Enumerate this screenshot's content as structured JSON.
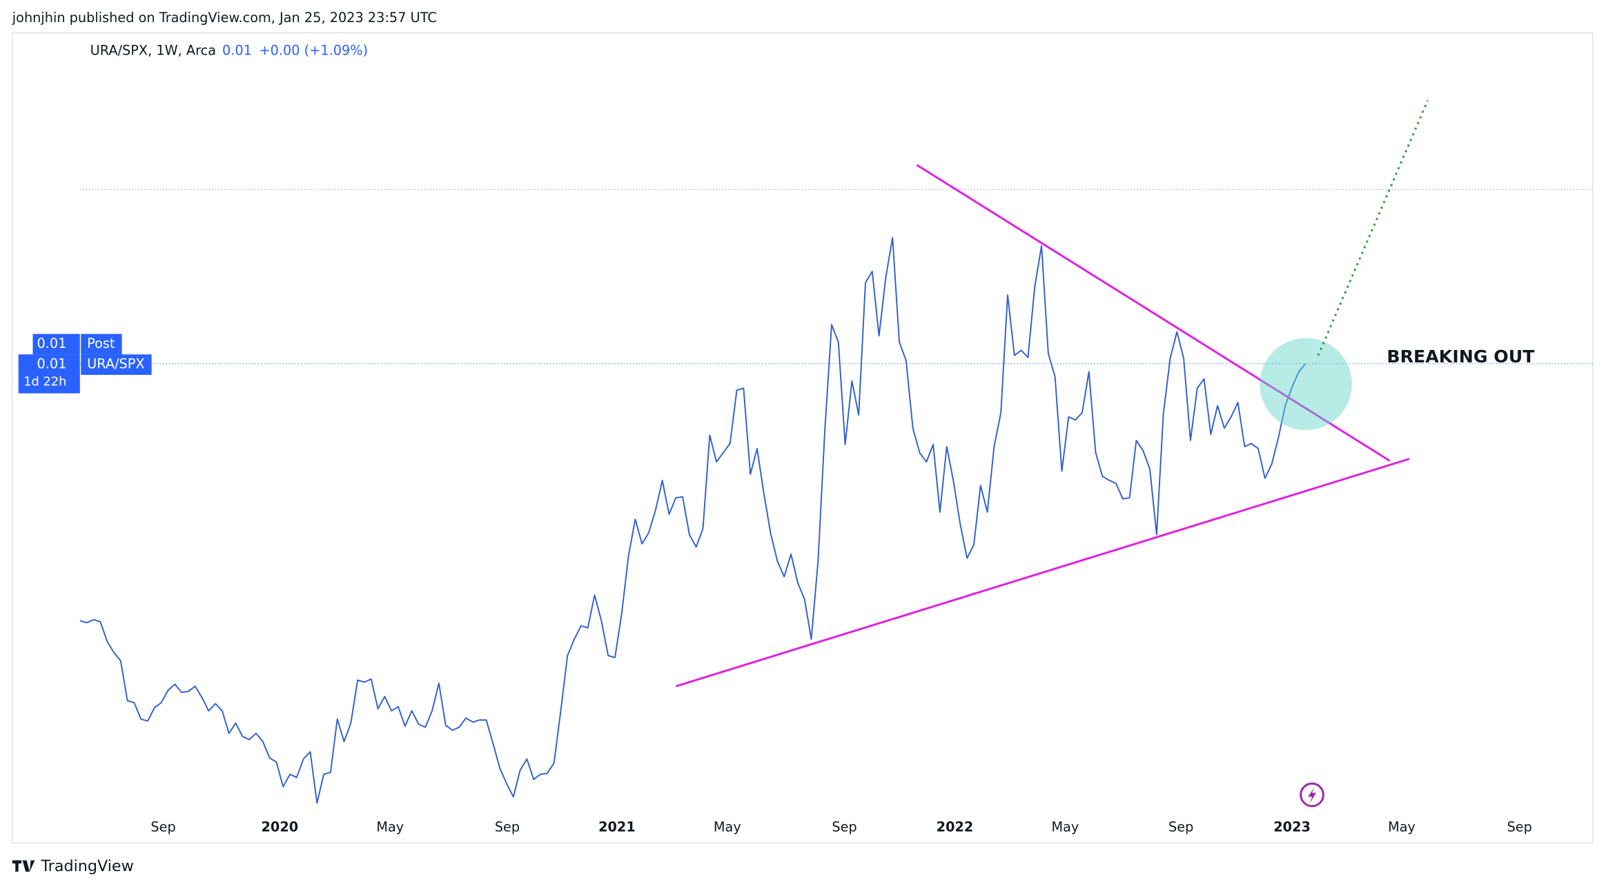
{
  "header": {
    "published": "johnjhin published on TradingView.com, Jan 25, 2023 23:57 UTC"
  },
  "legend": {
    "symbol": "URA/SPX, 1W, Arca",
    "last": "0.01",
    "change": "+0.00 (+1.09%)"
  },
  "price_badges": {
    "post_value": "0.01",
    "post_name": "Post",
    "last_value": "0.01",
    "countdown": "1d 22h"
  },
  "annotation": "BREAKING OUT",
  "footer": {
    "brand": "TradingView"
  },
  "chart_data": {
    "type": "line",
    "series": [
      {
        "name": "URA/SPX",
        "color": "#2f5fd0",
        "values": [
          0.004045,
          0.004035,
          0.00405,
          0.00404,
          0.003945,
          0.00389,
          0.00385,
          0.003655,
          0.003645,
          0.003565,
          0.003555,
          0.00362,
          0.003645,
          0.003705,
          0.003735,
          0.003695,
          0.0037,
          0.003725,
          0.00367,
          0.003605,
          0.00364,
          0.003605,
          0.003495,
          0.003545,
          0.00348,
          0.003465,
          0.003495,
          0.003455,
          0.003375,
          0.003355,
          0.003235,
          0.003295,
          0.00328,
          0.00337,
          0.003405,
          0.003155,
          0.003295,
          0.003305,
          0.003565,
          0.003455,
          0.003545,
          0.003755,
          0.003745,
          0.00376,
          0.003615,
          0.003675,
          0.003605,
          0.003625,
          0.00353,
          0.003605,
          0.00354,
          0.003525,
          0.003605,
          0.00374,
          0.003535,
          0.00351,
          0.003525,
          0.00357,
          0.00355,
          0.00356,
          0.00356,
          0.003445,
          0.003325,
          0.00325,
          0.003185,
          0.003315,
          0.00337,
          0.00327,
          0.003295,
          0.0033,
          0.00335,
          0.003605,
          0.003875,
          0.003955,
          0.00402,
          0.00401,
          0.00417,
          0.004045,
          0.003875,
          0.003865,
          0.00408,
          0.00436,
          0.00454,
          0.00442,
          0.004475,
          0.004585,
          0.00473,
          0.004565,
          0.004645,
          0.00465,
          0.004465,
          0.004405,
          0.004495,
          0.00495,
          0.00482,
          0.004865,
          0.00491,
          0.00517,
          0.00518,
          0.00476,
          0.004885,
          0.004665,
          0.00447,
          0.004335,
          0.00426,
          0.00437,
          0.00423,
          0.00415,
          0.003955,
          0.004335,
          0.004975,
          0.00549,
          0.005405,
          0.004905,
          0.005215,
          0.00505,
          0.005695,
          0.00575,
          0.005435,
          0.00572,
          0.005915,
          0.005405,
          0.005315,
          0.004985,
          0.004865,
          0.00482,
          0.004905,
          0.004575,
          0.004895,
          0.004725,
          0.004515,
          0.00435,
          0.004415,
          0.004705,
          0.004575,
          0.004895,
          0.00506,
          0.005635,
          0.00534,
          0.005365,
          0.00533,
          0.005675,
          0.005875,
          0.00535,
          0.005235,
          0.004775,
          0.00504,
          0.005025,
          0.00506,
          0.00526,
          0.004865,
          0.00475,
          0.00473,
          0.004715,
          0.00464,
          0.004645,
          0.004925,
          0.004875,
          0.004785,
          0.004465,
          0.005055,
          0.005325,
          0.005455,
          0.005325,
          0.004925,
          0.00518,
          0.005225,
          0.004955,
          0.005095,
          0.004985,
          0.00504,
          0.00511,
          0.004895,
          0.00491,
          0.004885,
          0.00474,
          0.00481,
          0.00494,
          0.005095,
          0.005185,
          0.00526,
          0.0053
        ]
      }
    ],
    "xlim": [
      -10,
      223.4
    ],
    "ylim": [
      0.0031,
      0.006915
    ],
    "xticks": [
      {
        "value": 12.3,
        "label": "Sep"
      },
      {
        "value": 29.5,
        "label": "2020"
      },
      {
        "value": 45.8,
        "label": "May"
      },
      {
        "value": 63.1,
        "label": "Sep"
      },
      {
        "value": 79.3,
        "label": "2021"
      },
      {
        "value": 95.6,
        "label": "May"
      },
      {
        "value": 112.9,
        "label": "Sep"
      },
      {
        "value": 129.2,
        "label": "2022"
      },
      {
        "value": 145.5,
        "label": "May"
      },
      {
        "value": 162.6,
        "label": "Sep"
      },
      {
        "value": 179.0,
        "label": "2023"
      },
      {
        "value": 195.2,
        "label": "May"
      },
      {
        "value": 212.6,
        "label": "Sep"
      }
    ],
    "grid": false
  }
}
